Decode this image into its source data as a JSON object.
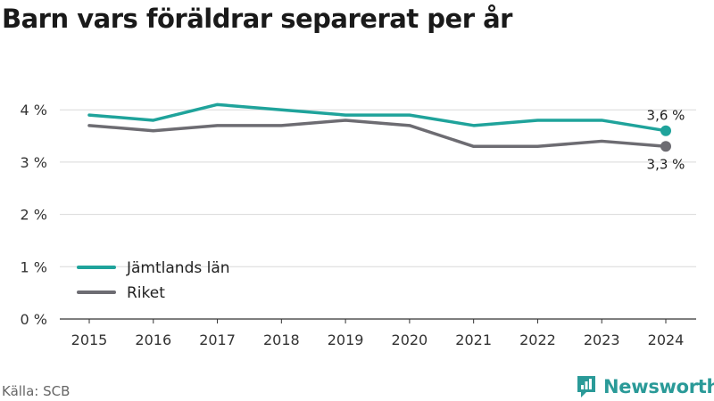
{
  "title": "Barn vars föräldrar separerat per år",
  "source": "Källa: SCB",
  "brand": {
    "name": "Newsworthy",
    "icon": "newsworthy-logo-icon",
    "color": "#2a9a98"
  },
  "chart_data": {
    "type": "line",
    "title": "Barn vars föräldrar separerat per år",
    "x": [
      "2015",
      "2016",
      "2017",
      "2018",
      "2019",
      "2020",
      "2021",
      "2022",
      "2023",
      "2024"
    ],
    "ylim": [
      0,
      4.6
    ],
    "yticks": [
      0,
      1,
      2,
      3,
      4
    ],
    "ytick_labels": [
      "0 %",
      "1 %",
      "2 %",
      "3 %",
      "4 %"
    ],
    "grid": true,
    "legend_placement": "bottom-left",
    "series": [
      {
        "name": "Jämtlands län",
        "color": "#1fa39b",
        "values": [
          3.9,
          3.8,
          4.1,
          4.0,
          3.9,
          3.9,
          3.7,
          3.8,
          3.8,
          3.6
        ],
        "end_label": "3,6 %"
      },
      {
        "name": "Riket",
        "color": "#6d6c72",
        "values": [
          3.7,
          3.6,
          3.7,
          3.7,
          3.8,
          3.7,
          3.3,
          3.3,
          3.4,
          3.3
        ],
        "end_label": "3,3 %"
      }
    ]
  }
}
